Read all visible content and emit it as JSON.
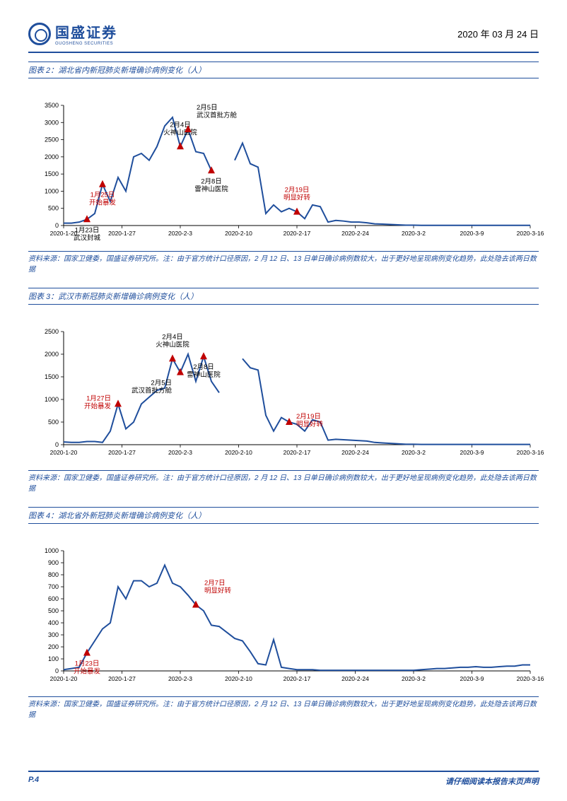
{
  "header": {
    "company": "国盛证券",
    "company_sub": "GUOSHENG SECURITIES",
    "date": "2020 年 03 月 24 日"
  },
  "chart1": {
    "title": "图表 2：湖北省内新冠肺炎新增确诊病例变化（人）",
    "type": "line",
    "line_color": "#1f4e9c",
    "marker_color": "#c00000",
    "annotation_red": "#c00000",
    "annotation_black": "#000000",
    "ylim": [
      0,
      3500
    ],
    "ytick_step": 500,
    "x_labels": [
      "2020-1-20",
      "2020-1-27",
      "2020-2-3",
      "2020-2-10",
      "2020-2-17",
      "2020-2-24",
      "2020-3-2",
      "2020-3-9",
      "2020-3-16"
    ],
    "data": [
      70,
      70,
      100,
      180,
      350,
      1200,
      700,
      1400,
      1000,
      2000,
      2100,
      1900,
      2300,
      2900,
      3150,
      2300,
      2800,
      2150,
      2100,
      1600,
      null,
      null,
      1900,
      2400,
      1800,
      1700,
      350,
      600,
      400,
      500,
      400,
      200,
      600,
      550,
      100,
      150,
      130,
      100,
      100,
      80,
      50,
      40,
      30,
      20,
      10,
      10,
      5,
      5,
      5,
      5,
      5,
      5,
      5,
      5,
      5,
      5,
      5,
      5,
      5,
      5,
      5
    ],
    "annotations": [
      {
        "idx": 3,
        "label1": "1月23日",
        "label2": "武汉封城",
        "pos": "below",
        "color": "black"
      },
      {
        "idx": 5,
        "label1": "1月25日",
        "label2": "开始暴发",
        "pos": "below",
        "color": "red"
      },
      {
        "idx": 15,
        "label1": "2月4日",
        "label2": "火神山医院",
        "pos": "above",
        "color": "black"
      },
      {
        "idx": 16,
        "label1": "2月5日",
        "label2": "武汉首批方舱",
        "pos": "aboveR",
        "color": "black"
      },
      {
        "idx": 19,
        "label1": "2月8日",
        "label2": "雷神山医院",
        "pos": "below",
        "color": "black"
      },
      {
        "idx": 30,
        "label1": "2月19日",
        "label2": "明显好转",
        "pos": "above",
        "color": "red"
      }
    ],
    "source": "资料来源：国家卫健委，国盛证券研究所。注：由于官方统计口径原因，2 月 12 日、13 日单日确诊病例数较大，出于更好地呈现病例变化趋势，此处隐去该两日数据"
  },
  "chart2": {
    "title": "图表 3：武汉市新冠肺炎新增确诊病例变化（人）",
    "type": "line",
    "line_color": "#1f4e9c",
    "marker_color": "#c00000",
    "ylim": [
      0,
      2500
    ],
    "ytick_step": 500,
    "x_labels": [
      "2020-1-20",
      "2020-1-27",
      "2020-2-3",
      "2020-2-10",
      "2020-2-17",
      "2020-2-24",
      "2020-3-2",
      "2020-3-9",
      "2020-3-16"
    ],
    "data": [
      60,
      50,
      50,
      70,
      70,
      50,
      300,
      900,
      350,
      500,
      900,
      1050,
      1200,
      1250,
      1900,
      1600,
      2000,
      1400,
      1950,
      1400,
      1150,
      null,
      null,
      1900,
      1700,
      1650,
      650,
      300,
      600,
      500,
      450,
      300,
      550,
      500,
      100,
      120,
      110,
      100,
      90,
      80,
      50,
      40,
      30,
      20,
      10,
      10,
      5,
      5,
      5,
      5,
      5,
      5,
      5,
      5,
      5,
      5,
      5,
      5,
      5,
      5,
      5
    ],
    "annotations": [
      {
        "idx": 7,
        "label1": "1月27日",
        "label2": "开始暴发",
        "pos": "left",
        "color": "red"
      },
      {
        "idx": 14,
        "label1": "2月4日",
        "label2": "火神山医院",
        "pos": "above",
        "color": "black"
      },
      {
        "idx": 15,
        "label1": "2月5日",
        "label2": "武汉首批方舱",
        "pos": "belowL",
        "color": "black"
      },
      {
        "idx": 18,
        "label1": "2月8日",
        "label2": "雷神山医院",
        "pos": "below",
        "color": "black"
      },
      {
        "idx": 29,
        "label1": "2月19日",
        "label2": "明显好转",
        "pos": "right",
        "color": "red"
      }
    ],
    "source": "资料来源：国家卫健委，国盛证券研究所。注：由于官方统计口径原因，2 月 12 日、13 日单日确诊病例数较大，出于更好地呈现病例变化趋势，此处隐去该两日数据"
  },
  "chart3": {
    "title": "图表 4：湖北省外新冠肺炎新增确诊病例变化（人）",
    "type": "line",
    "line_color": "#1f4e9c",
    "marker_color": "#c00000",
    "ylim": [
      0,
      1000
    ],
    "ytick_step": 100,
    "x_labels": [
      "2020-1-20",
      "2020-1-27",
      "2020-2-3",
      "2020-2-10",
      "2020-2-17",
      "2020-2-24",
      "2020-3-2",
      "2020-3-9",
      "2020-3-16"
    ],
    "data": [
      10,
      20,
      30,
      150,
      250,
      350,
      400,
      700,
      600,
      750,
      750,
      700,
      730,
      880,
      730,
      700,
      630,
      550,
      500,
      380,
      370,
      320,
      270,
      250,
      160,
      60,
      50,
      260,
      30,
      20,
      10,
      10,
      10,
      5,
      5,
      5,
      5,
      5,
      5,
      5,
      5,
      5,
      5,
      5,
      5,
      5,
      10,
      15,
      20,
      20,
      25,
      30,
      30,
      35,
      30,
      30,
      35,
      40,
      40,
      50,
      50
    ],
    "annotations": [
      {
        "idx": 3,
        "label1": "1月23日",
        "label2": "开始暴发",
        "pos": "below",
        "color": "red"
      },
      {
        "idx": 17,
        "label1": "2月7日",
        "label2": "明显好转",
        "pos": "aboveR",
        "color": "red"
      }
    ],
    "source": "资料来源：国家卫健委，国盛证券研究所。注：由于官方统计口径原因，2 月 12 日、13 日单日确诊病例数较大，出于更好地呈现病例变化趋势，此处隐去该两日数据"
  },
  "footer": {
    "page": "P.4",
    "disclaimer": "请仔细阅读本报告末页声明"
  }
}
